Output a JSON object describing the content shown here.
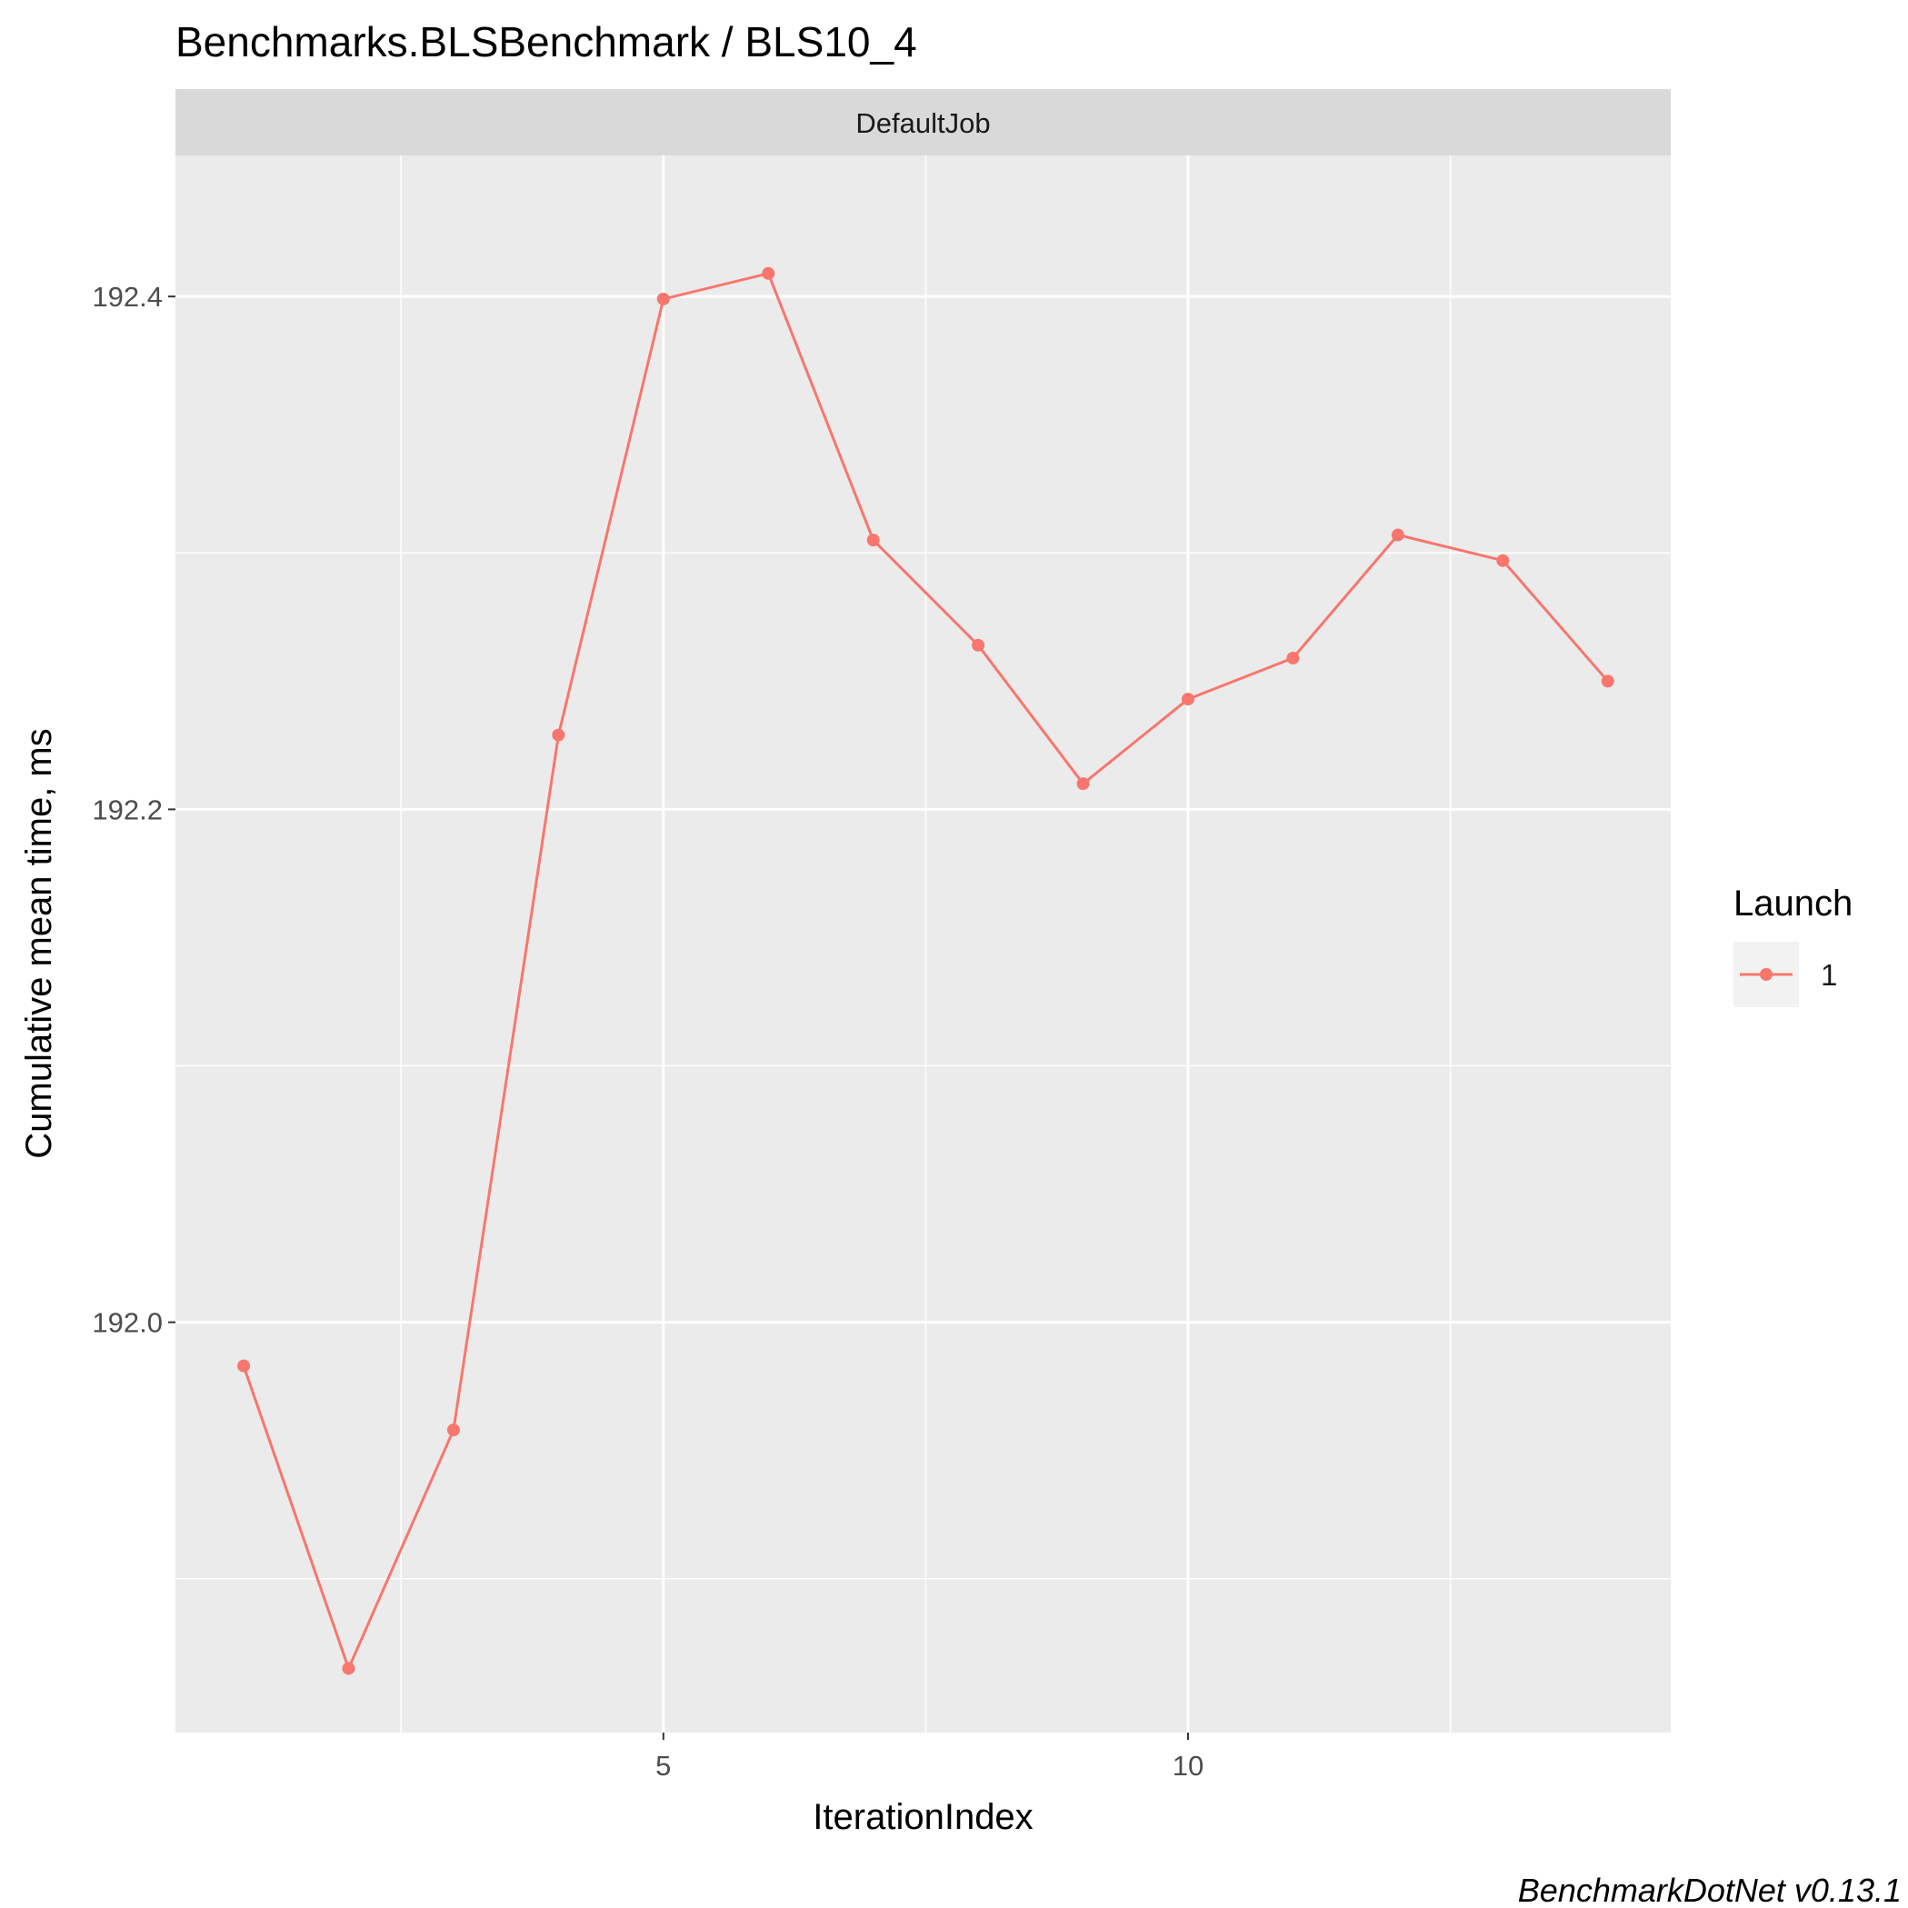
{
  "chart_data": {
    "type": "line",
    "title": "Benchmarks.BLSBenchmark / BLS10_4",
    "facet_label": "DefaultJob",
    "xlabel": "IterationIndex",
    "ylabel": "Cumulative mean time, ms",
    "x_ticks": [
      5,
      10
    ],
    "x_tick_labels": [
      "5",
      "10"
    ],
    "y_ticks": [
      192.0,
      192.2,
      192.4
    ],
    "y_tick_labels": [
      "192.0",
      "192.2",
      "192.4"
    ],
    "xlim": [
      0.35,
      14.6
    ],
    "ylim": [
      191.84,
      192.455
    ],
    "grid": true,
    "legend": {
      "title": "Launch",
      "position": "right"
    },
    "series": [
      {
        "name": "1",
        "color": "#F8766D",
        "x": [
          1,
          2,
          3,
          4,
          5,
          6,
          7,
          8,
          9,
          10,
          11,
          12,
          13,
          14
        ],
        "values": [
          191.983,
          191.865,
          191.958,
          192.229,
          192.399,
          192.409,
          192.305,
          192.264,
          192.21,
          192.243,
          192.259,
          192.307,
          192.297,
          192.25
        ]
      }
    ],
    "caption": "BenchmarkDotNet v0.13.1"
  }
}
